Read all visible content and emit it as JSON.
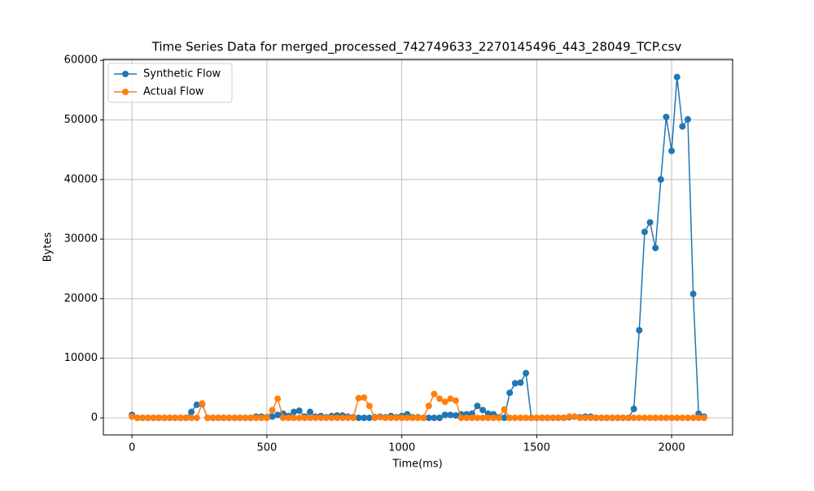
{
  "chart_data": {
    "type": "line",
    "title": "Time Series Data for merged_processed_742749633_2270145496_443_28049_TCP.csv",
    "xlabel": "Time(ms)",
    "ylabel": "Bytes",
    "x": [
      0,
      20,
      40,
      60,
      80,
      100,
      120,
      140,
      160,
      180,
      200,
      220,
      240,
      260,
      280,
      300,
      320,
      340,
      360,
      380,
      400,
      420,
      440,
      460,
      480,
      500,
      520,
      540,
      560,
      580,
      600,
      620,
      640,
      660,
      680,
      700,
      720,
      740,
      760,
      780,
      800,
      820,
      840,
      860,
      880,
      900,
      920,
      940,
      960,
      980,
      1000,
      1020,
      1040,
      1060,
      1080,
      1100,
      1120,
      1140,
      1160,
      1180,
      1200,
      1220,
      1240,
      1260,
      1280,
      1300,
      1320,
      1340,
      1360,
      1380,
      1400,
      1420,
      1440,
      1460,
      1480,
      1500,
      1520,
      1540,
      1560,
      1580,
      1600,
      1620,
      1640,
      1660,
      1680,
      1700,
      1720,
      1740,
      1760,
      1780,
      1800,
      1820,
      1840,
      1860,
      1880,
      1900,
      1920,
      1940,
      1960,
      1980,
      2000,
      2020,
      2040,
      2060,
      2080,
      2100,
      2120
    ],
    "series": [
      {
        "name": "Synthetic Flow",
        "color": "#1f77b4",
        "values": [
          500,
          0,
          0,
          0,
          0,
          0,
          0,
          0,
          0,
          0,
          0,
          1000,
          2200,
          2300,
          0,
          0,
          0,
          0,
          0,
          0,
          0,
          0,
          0,
          200,
          200,
          100,
          200,
          500,
          700,
          300,
          1000,
          1200,
          200,
          1000,
          200,
          300,
          100,
          300,
          400,
          400,
          200,
          100,
          0,
          0,
          0,
          100,
          200,
          100,
          300,
          100,
          300,
          600,
          100,
          100,
          0,
          0,
          0,
          0,
          500,
          500,
          400,
          600,
          600,
          700,
          2000,
          1300,
          700,
          600,
          100,
          0,
          4200,
          5800,
          5900,
          7500,
          0,
          0,
          0,
          0,
          0,
          0,
          0,
          100,
          200,
          100,
          200,
          200,
          0,
          0,
          0,
          0,
          0,
          0,
          0,
          1500,
          14700,
          31200,
          32800,
          28500,
          40000,
          50500,
          44800,
          57200,
          48900,
          50100,
          20800,
          700,
          200
        ]
      },
      {
        "name": "Actual Flow",
        "color": "#ff7f0e",
        "values": [
          200,
          0,
          0,
          0,
          0,
          0,
          0,
          0,
          0,
          0,
          0,
          0,
          0,
          2400,
          0,
          0,
          0,
          0,
          0,
          0,
          0,
          0,
          0,
          0,
          0,
          0,
          1300,
          3200,
          0,
          0,
          0,
          0,
          0,
          0,
          0,
          0,
          0,
          0,
          0,
          0,
          0,
          0,
          3300,
          3400,
          2000,
          0,
          100,
          0,
          0,
          0,
          0,
          0,
          0,
          0,
          0,
          2000,
          4000,
          3200,
          2700,
          3200,
          2900,
          0,
          0,
          0,
          0,
          0,
          0,
          0,
          0,
          1400,
          0,
          0,
          0,
          0,
          0,
          0,
          0,
          0,
          0,
          0,
          0,
          200,
          200,
          0,
          0,
          0,
          0,
          0,
          0,
          0,
          0,
          0,
          0,
          0,
          0,
          0,
          0,
          0,
          0,
          0,
          0,
          0,
          0,
          0,
          0,
          0,
          0
        ]
      }
    ],
    "xlim": [
      -106,
      2226
    ],
    "xticks": [
      0,
      500,
      1000,
      1500,
      2000
    ],
    "ylim": [
      -2865,
      60165
    ],
    "yticks": [
      0,
      10000,
      20000,
      30000,
      40000,
      50000,
      60000
    ],
    "grid": true,
    "legend": "upper left"
  }
}
